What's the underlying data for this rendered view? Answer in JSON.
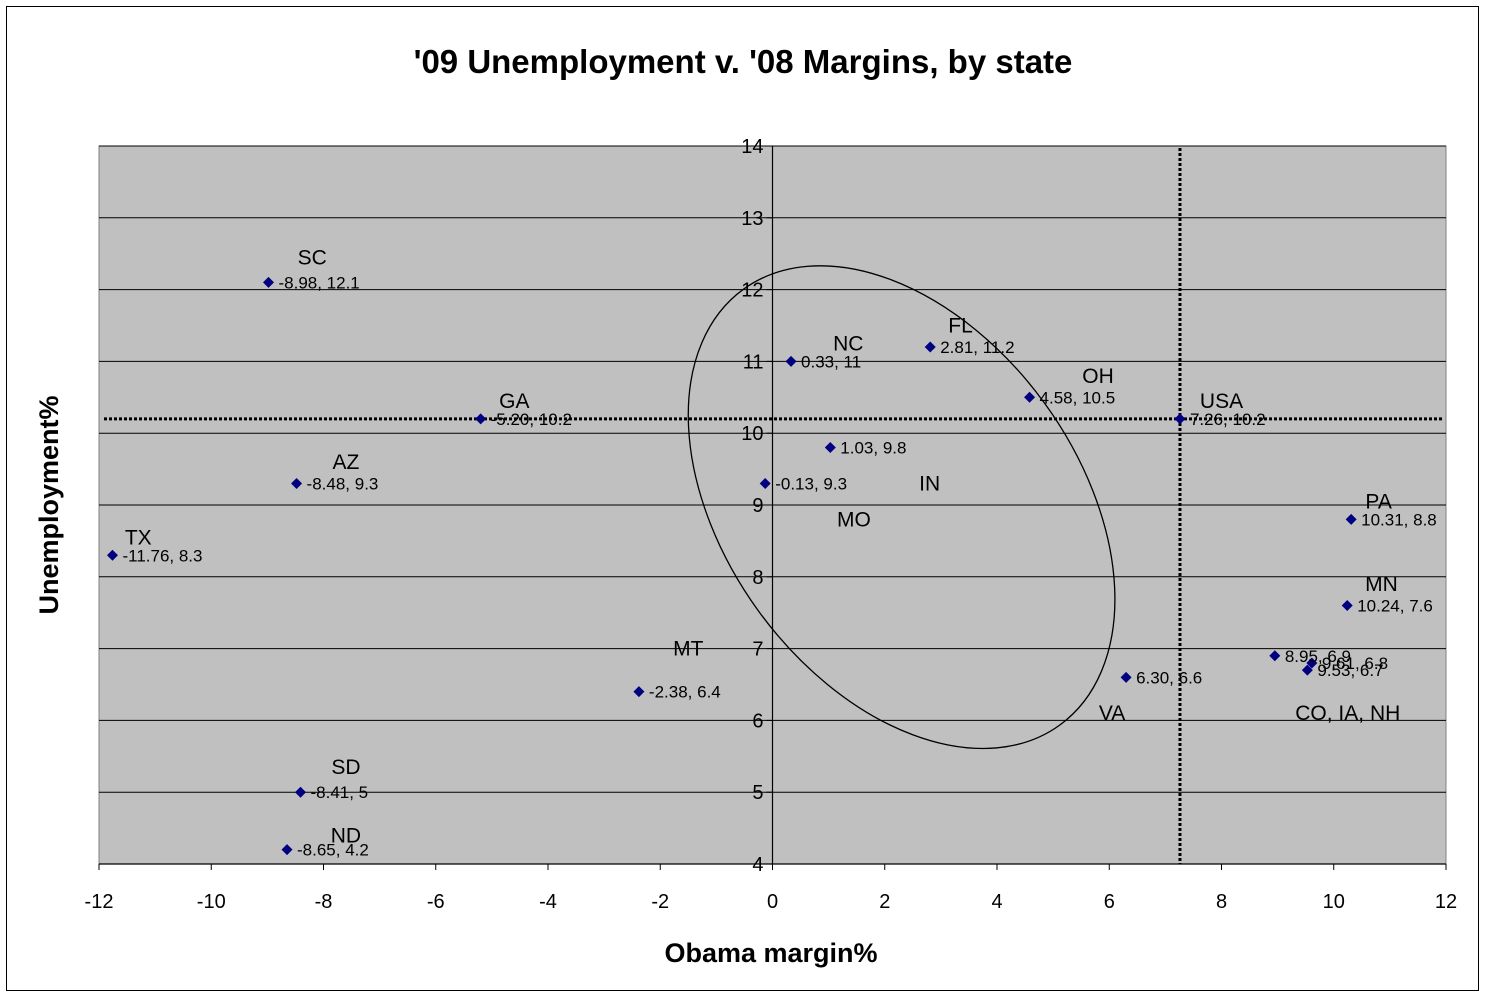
{
  "chart_data": {
    "type": "scatter",
    "title": "'09 Unemployment v. '08 Margins, by state",
    "xlabel": "Obama margin%",
    "ylabel": "Unemployment%",
    "xlim": [
      -12,
      12
    ],
    "ylim": [
      4,
      14
    ],
    "xticks": [
      "-12",
      "-10",
      "-8",
      "-6",
      "-4",
      "-2",
      "0",
      "2",
      "4",
      "6",
      "8",
      "10",
      "12"
    ],
    "yticks": [
      "4",
      "5",
      "6",
      "7",
      "8",
      "9",
      "10",
      "11",
      "12",
      "13",
      "14"
    ],
    "grid": true,
    "background": "#c0c0c0",
    "marker_color": "#000080",
    "series": [
      {
        "points": [
          {
            "x": -8.98,
            "y": 12.1,
            "label": "-8.98, 12.1"
          },
          {
            "x": -5.2,
            "y": 10.2,
            "label": "-5.20, 10.2"
          },
          {
            "x": -8.48,
            "y": 9.3,
            "label": "-8.48, 9.3"
          },
          {
            "x": -11.76,
            "y": 8.3,
            "label": "-11.76, 8.3"
          },
          {
            "x": -8.41,
            "y": 5.0,
            "label": "-8.41, 5"
          },
          {
            "x": -8.65,
            "y": 4.2,
            "label": "-8.65, 4.2"
          },
          {
            "x": -2.38,
            "y": 6.4,
            "label": "-2.38, 6.4"
          },
          {
            "x": 0.33,
            "y": 11.0,
            "label": "0.33, 11"
          },
          {
            "x": 2.81,
            "y": 11.2,
            "label": "2.81, 11.2"
          },
          {
            "x": 4.58,
            "y": 10.5,
            "label": "4.58, 10.5"
          },
          {
            "x": 1.03,
            "y": 9.8,
            "label": "1.03, 9.8"
          },
          {
            "x": -0.13,
            "y": 9.3,
            "label": "-0.13, 9.3"
          },
          {
            "x": 7.26,
            "y": 10.2,
            "label": "7.26, 10.2"
          },
          {
            "x": 10.31,
            "y": 8.8,
            "label": "10.31, 8.8"
          },
          {
            "x": 10.24,
            "y": 7.6,
            "label": "10.24, 7.6"
          },
          {
            "x": 8.95,
            "y": 6.9,
            "label": "8.95, 6.9"
          },
          {
            "x": 9.61,
            "y": 6.8,
            "label": "9.61, 6.8"
          },
          {
            "x": 9.53,
            "y": 6.7,
            "label": "9.53, 6.7"
          },
          {
            "x": 6.3,
            "y": 6.6,
            "label": "6.30, 6.6"
          }
        ]
      }
    ],
    "annotations": [
      {
        "text": "SC",
        "x": -8.2,
        "y": 12.45
      },
      {
        "text": "GA",
        "x": -4.6,
        "y": 10.45
      },
      {
        "text": "AZ",
        "x": -7.6,
        "y": 9.6
      },
      {
        "text": "TX",
        "x": -11.3,
        "y": 8.55
      },
      {
        "text": "SD",
        "x": -7.6,
        "y": 5.35
      },
      {
        "text": "ND",
        "x": -7.6,
        "y": 4.4
      },
      {
        "text": "MT",
        "x": -1.5,
        "y": 7.0
      },
      {
        "text": "NC",
        "x": 1.35,
        "y": 11.25
      },
      {
        "text": "FL",
        "x": 3.35,
        "y": 11.5
      },
      {
        "text": "OH",
        "x": 5.8,
        "y": 10.8
      },
      {
        "text": "IN",
        "x": 2.8,
        "y": 9.3
      },
      {
        "text": "MO",
        "x": 1.45,
        "y": 8.8
      },
      {
        "text": "USA",
        "x": 8.0,
        "y": 10.45
      },
      {
        "text": "PA",
        "x": 10.8,
        "y": 9.05
      },
      {
        "text": "MN",
        "x": 10.85,
        "y": 7.9
      },
      {
        "text": "VA",
        "x": 6.05,
        "y": 6.1
      },
      {
        "text": "CO, IA, NH",
        "x": 10.25,
        "y": 6.1
      }
    ],
    "reference_lines": [
      {
        "orientation": "horizontal",
        "y": 10.2,
        "style": "dotted"
      },
      {
        "orientation": "vertical",
        "x": 7.26,
        "style": "dotted"
      }
    ],
    "ellipse": {
      "cx": 2.3,
      "cy": 8.97,
      "rx": 3.15,
      "ry": 3.75,
      "rotation_deg": 36
    }
  }
}
